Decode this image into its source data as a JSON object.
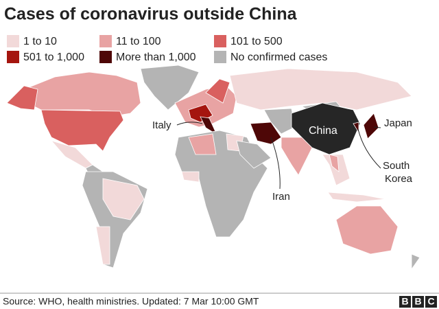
{
  "title": "Cases of coronavirus outside China",
  "legend": [
    {
      "label": "1 to 10",
      "color": "#f2d9d9"
    },
    {
      "label": "11 to 100",
      "color": "#e8a3a3"
    },
    {
      "label": "101 to 500",
      "color": "#d9605f"
    },
    {
      "label": "501 to 1,000",
      "color": "#a5150f"
    },
    {
      "label": "More than 1,000",
      "color": "#4e0707"
    },
    {
      "label": "No confirmed cases",
      "color": "#b4b4b4"
    }
  ],
  "annotations": {
    "italy": "Italy",
    "iran": "Iran",
    "china": "China",
    "japan": "Japan",
    "south_korea": [
      "South",
      "Korea"
    ]
  },
  "source": "Source: WHO, health ministries. Updated: 7 Mar 10:00 GMT",
  "logo": [
    "B",
    "B",
    "C"
  ]
}
